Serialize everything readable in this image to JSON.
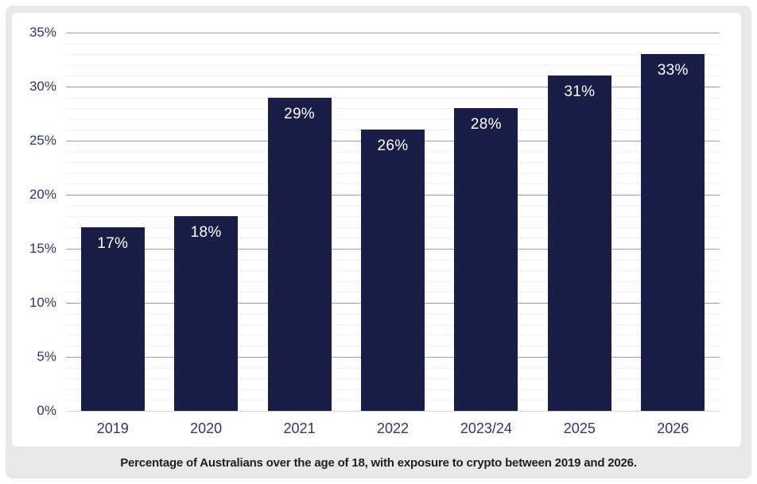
{
  "chart_data": {
    "type": "bar",
    "categories": [
      "2019",
      "2020",
      "2021",
      "2022",
      "2023/24",
      "2025",
      "2026"
    ],
    "values": [
      17,
      18,
      29,
      26,
      28,
      31,
      33
    ],
    "value_labels": [
      "17%",
      "18%",
      "29%",
      "26%",
      "28%",
      "31%",
      "33%"
    ],
    "title": "",
    "xlabel": "",
    "ylabel": "",
    "ylim": [
      0,
      35
    ],
    "y_major_step": 5,
    "y_minor_step": 1,
    "y_tick_labels": [
      "0%",
      "5%",
      "10%",
      "15%",
      "20%",
      "25%",
      "30%",
      "35%"
    ],
    "grid": "on",
    "legend": "none",
    "caption": "Percentage of Australians over the age of 18, with exposure to crypto between 2019 and 2026."
  },
  "colors": {
    "bar": "#1a1e47",
    "bar_label": "#ffffff",
    "axis_text": "#31356a",
    "grid_major": "#8f9fd2",
    "grid_minor": "#f5eff3",
    "baseline": "#d9dade",
    "panel_bg": "#e9e9e9",
    "chart_bg": "#ffffff",
    "page_bg": "#ffffff",
    "caption_text": "#1f1f1f"
  }
}
